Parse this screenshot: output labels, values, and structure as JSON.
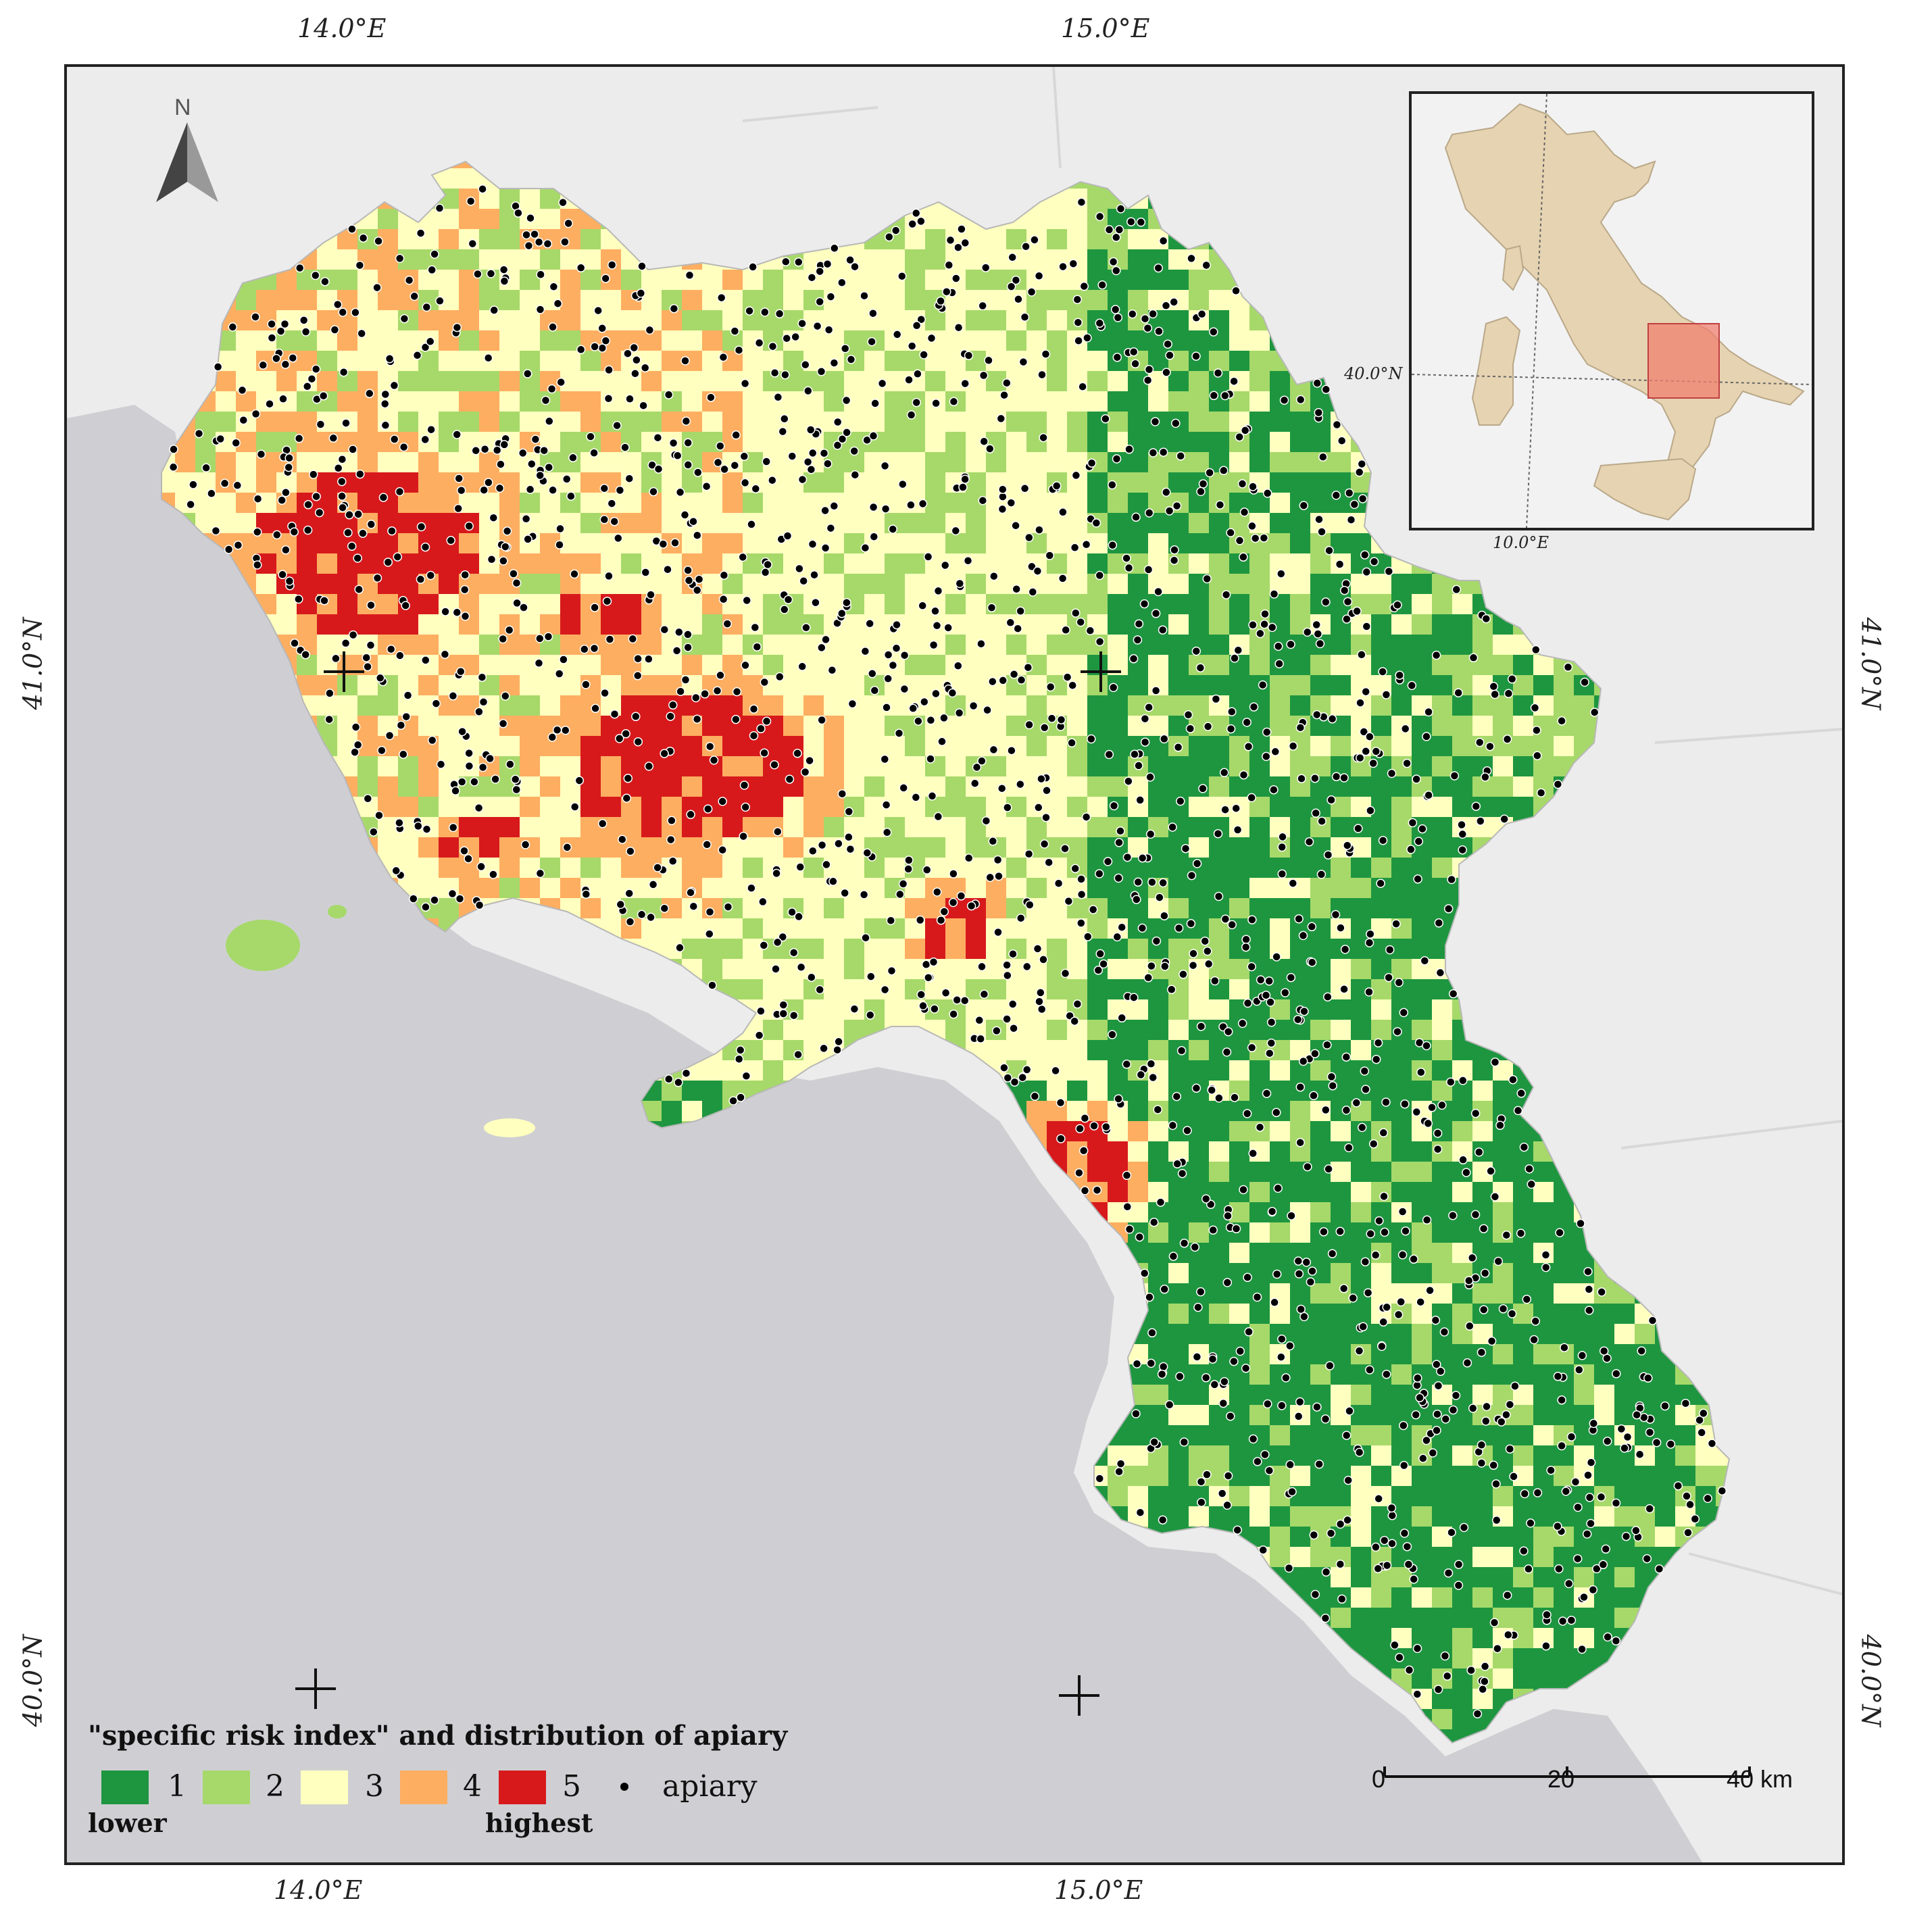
{
  "graticule": {
    "top": [
      "14.0°E",
      "15.0°E"
    ],
    "bottom": [
      "14.0°E",
      "15.0°E"
    ],
    "left": [
      "41.0°N",
      "40.0°N"
    ],
    "right": [
      "41.0°N",
      "40.0°N"
    ]
  },
  "north_arrow": {
    "letter": "N"
  },
  "inset_map": {
    "lat_label": "40.0°N",
    "lon_label": "10.0°E",
    "highlight_color": "#f08070"
  },
  "legend": {
    "title": "\"specific risk index\" and distribution of apiary",
    "classes": [
      {
        "label": "1",
        "color": "#1e9640"
      },
      {
        "label": "2",
        "color": "#a6d96a"
      },
      {
        "label": "3",
        "color": "#ffffbf"
      },
      {
        "label": "4",
        "color": "#fdae61"
      },
      {
        "label": "5",
        "color": "#d7191c"
      }
    ],
    "low_word": "lower",
    "high_word": "highest",
    "point_label": "apiary"
  },
  "scale_bar": {
    "labels": [
      "0",
      "20",
      "40 km"
    ]
  },
  "colors": {
    "sea": "#cfcfd3",
    "land_outside": "#ececec",
    "apiary": "#000000"
  }
}
